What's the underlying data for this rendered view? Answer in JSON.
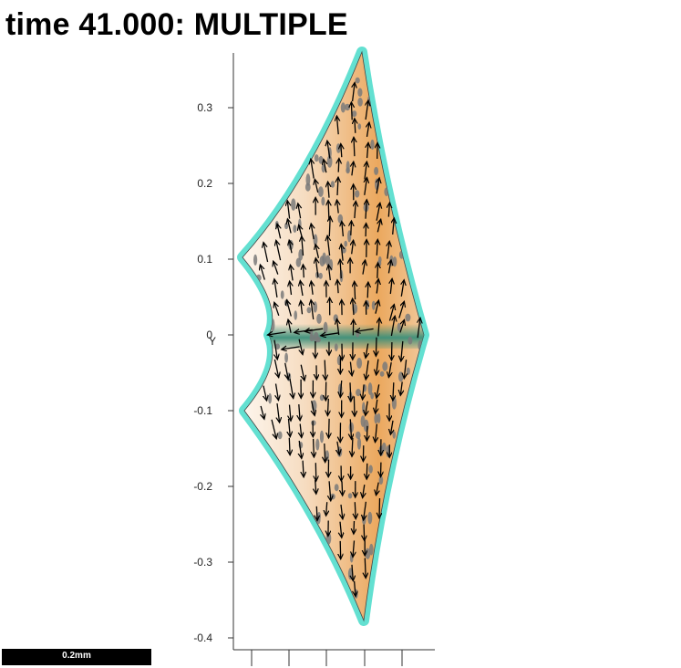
{
  "title": "time 41.000: MULTIPLE",
  "axis": {
    "y_ticks": [
      "0.3",
      "0.2",
      "0.1",
      "0",
      "-0.1",
      "-0.2",
      "-0.3",
      "-0.4"
    ],
    "y_axis_label": "Y"
  },
  "scale_bar": {
    "label": "0.2mm"
  },
  "colors": {
    "background": "#ffffff",
    "tissue_center": "#e9a55a",
    "tissue_edge": "#fbeee0",
    "boundary": "#2fd6c2",
    "midline": "#3a8f7a",
    "arrow": "#000000",
    "dots": "#7a7a7a"
  },
  "legend_icons": {
    "arrow": "arrow-glyph",
    "dot": "cell-dot"
  }
}
